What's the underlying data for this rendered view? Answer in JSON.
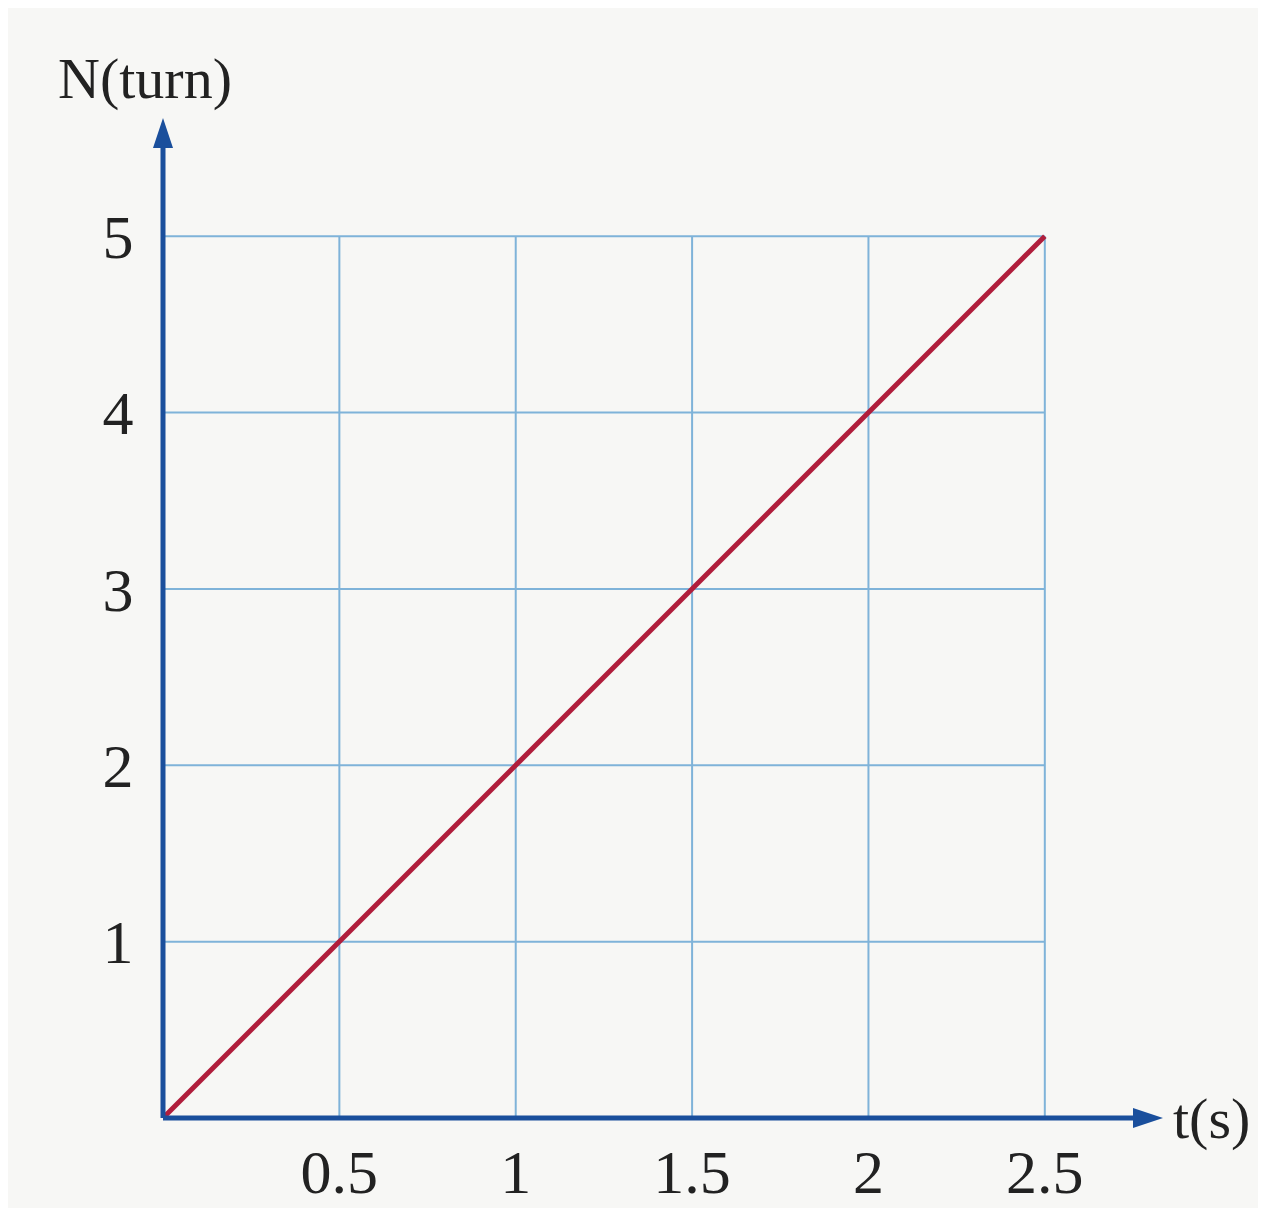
{
  "chart_data": {
    "type": "line",
    "xlabel": "t(s)",
    "ylabel": "N(turn)",
    "x": [
      0,
      2.5
    ],
    "series": [
      {
        "color": "#b01e3c",
        "values": [
          0,
          5
        ]
      }
    ],
    "xlim": [
      0,
      2.75
    ],
    "ylim": [
      0,
      5.5
    ],
    "xticks": [
      0.5,
      1,
      1.5,
      2,
      2.5
    ],
    "yticks": [
      1,
      2,
      3,
      4,
      5
    ],
    "grid": true,
    "marker": "none",
    "line_style": "solid"
  }
}
